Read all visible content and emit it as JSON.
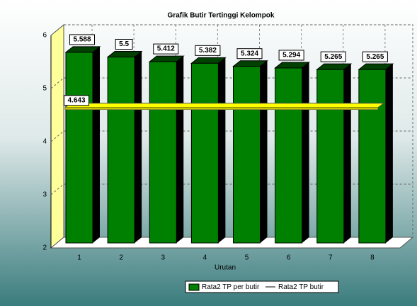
{
  "chart_data": {
    "type": "bar",
    "title": "Grafik Butir Tertinggi Kelompok",
    "x_label": "Urutan",
    "categories": [
      "1",
      "2",
      "3",
      "4",
      "5",
      "6",
      "7",
      "8"
    ],
    "series": [
      {
        "name": "Rata2 TP per butir",
        "color": "#008000",
        "values": [
          5.588,
          5.5,
          5.412,
          5.382,
          5.324,
          5.294,
          5.265,
          5.265
        ]
      },
      {
        "name": "Rata2 TP butir",
        "type": "line",
        "color": "#ffff00",
        "values": [
          4.643,
          4.643,
          4.643,
          4.643,
          4.643,
          4.643,
          4.643,
          4.643
        ]
      }
    ],
    "ylim": [
      2,
      6
    ],
    "yticks": [
      2,
      3,
      4,
      5,
      6
    ],
    "grid": true
  }
}
